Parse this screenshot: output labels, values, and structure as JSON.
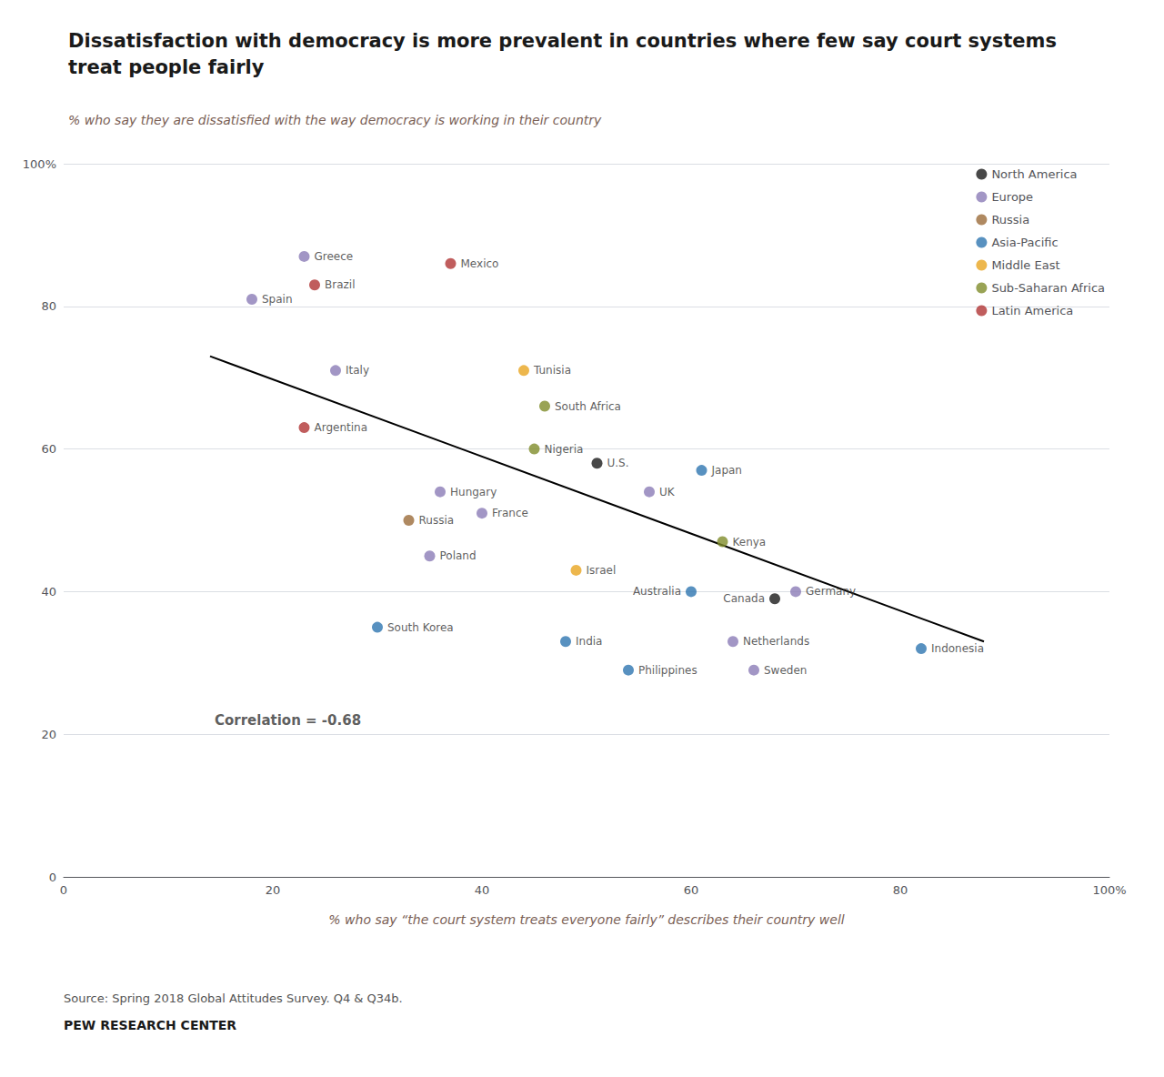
{
  "chart_data": {
    "type": "scatter",
    "title": "Dissatisfaction with democracy is more prevalent in countries where few say court systems treat people fairly",
    "subtitle": "% who say they are dissatisfied with the way democracy is working in their country",
    "xlabel": "% who say “the court system treats everyone fairly” describes their country well",
    "source": "Source: Spring 2018 Global Attitudes Survey. Q4 & Q34b.",
    "footer": "PEW RESEARCH CENTER",
    "xlim": [
      0,
      100
    ],
    "ylim": [
      0,
      100
    ],
    "xticks": [
      0,
      20,
      40,
      60,
      80,
      {
        "value": 100,
        "label": "100%"
      }
    ],
    "yticks": [
      0,
      20,
      40,
      60,
      80,
      {
        "value": 100,
        "label": "100%"
      }
    ],
    "grid": true,
    "legend": "upper right",
    "series": [
      {
        "name": "North America",
        "color": "#1a1a1a",
        "labels": [
          "U.S.",
          "Canada"
        ],
        "x": [
          51,
          68
        ],
        "values": [
          58,
          39
        ]
      },
      {
        "name": "Europe",
        "color": "#8b7cb6",
        "labels": [
          "Spain",
          "Greece",
          "Italy",
          "Hungary",
          "France",
          "Poland",
          "UK",
          "Netherlands",
          "Sweden",
          "Germany"
        ],
        "x": [
          18,
          23,
          26,
          36,
          40,
          35,
          56,
          64,
          66,
          70
        ],
        "values": [
          81,
          87,
          71,
          54,
          51,
          45,
          54,
          33,
          29,
          40
        ]
      },
      {
        "name": "Russia",
        "color": "#9b6b3a",
        "labels": [
          "Russia"
        ],
        "x": [
          33
        ],
        "values": [
          50
        ]
      },
      {
        "name": "Asia-Pacific",
        "color": "#2e75b0",
        "labels": [
          "South Korea",
          "India",
          "Philippines",
          "Japan",
          "Australia",
          "Indonesia"
        ],
        "x": [
          30,
          48,
          54,
          61,
          60,
          82
        ],
        "values": [
          35,
          33,
          29,
          57,
          40,
          32
        ]
      },
      {
        "name": "Middle East",
        "color": "#e8a520",
        "labels": [
          "Tunisia",
          "Israel"
        ],
        "x": [
          44,
          49
        ],
        "values": [
          71,
          43
        ]
      },
      {
        "name": "Sub-Saharan Africa",
        "color": "#7f8c2a",
        "labels": [
          "South Africa",
          "Nigeria",
          "Kenya"
        ],
        "x": [
          46,
          45,
          63
        ],
        "values": [
          66,
          60,
          47
        ]
      },
      {
        "name": "Latin America",
        "color": "#b03535",
        "labels": [
          "Brazil",
          "Argentina",
          "Mexico"
        ],
        "x": [
          24,
          23,
          37
        ],
        "values": [
          83,
          63,
          86
        ]
      }
    ],
    "trendline": {
      "x": [
        14,
        88
      ],
      "values": [
        73,
        33
      ],
      "color": "black"
    },
    "annotations": [
      {
        "text": "Correlation = -0.68",
        "x": 14,
        "y": 22
      }
    ]
  }
}
